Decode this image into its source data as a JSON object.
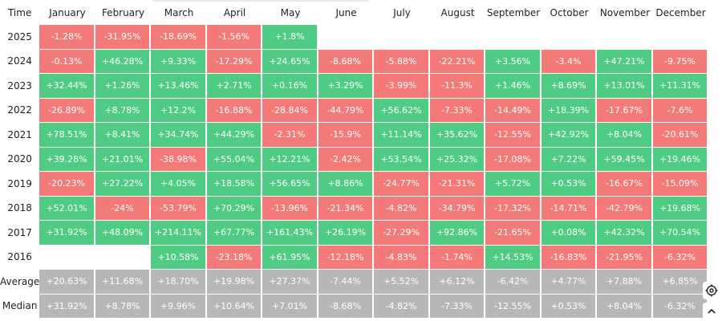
{
  "header": {
    "time_label": "Time",
    "months": [
      "January",
      "February",
      "March",
      "April",
      "May",
      "June",
      "July",
      "August",
      "September",
      "October",
      "November",
      "December"
    ]
  },
  "rows": [
    {
      "label": "2025",
      "values": [
        "-1.28%",
        "-31.95%",
        "-18.69%",
        "-1.56%",
        "+1.8%",
        "",
        "",
        "",
        "",
        "",
        "",
        ""
      ]
    },
    {
      "label": "2024",
      "values": [
        "-0.13%",
        "+46.28%",
        "+9.33%",
        "-17.29%",
        "+24.65%",
        "-8.68%",
        "-5.88%",
        "-22.21%",
        "+3.56%",
        "-3.4%",
        "+47.21%",
        "-9.75%"
      ]
    },
    {
      "label": "2023",
      "values": [
        "+32.44%",
        "+1.26%",
        "+13.46%",
        "+2.71%",
        "+0.16%",
        "+3.29%",
        "-3.99%",
        "-11.3%",
        "+1.46%",
        "+8.69%",
        "+13.01%",
        "+11.31%"
      ]
    },
    {
      "label": "2022",
      "values": [
        "-26.89%",
        "+8.78%",
        "+12.2%",
        "-16.88%",
        "-28.84%",
        "-44.79%",
        "+56.62%",
        "-7.33%",
        "-14.49%",
        "+18.39%",
        "-17.67%",
        "-7.6%"
      ]
    },
    {
      "label": "2021",
      "values": [
        "+78.51%",
        "+8.41%",
        "+34.74%",
        "+44.29%",
        "-2.31%",
        "-15.9%",
        "+11.14%",
        "+35.62%",
        "-12.55%",
        "+42.92%",
        "+8.04%",
        "-20.61%"
      ]
    },
    {
      "label": "2020",
      "values": [
        "+39.28%",
        "+21.01%",
        "-38.98%",
        "+55.04%",
        "+12.21%",
        "-2.42%",
        "+53.54%",
        "+25.32%",
        "-17.08%",
        "+7.22%",
        "+59.45%",
        "+19.46%"
      ]
    },
    {
      "label": "2019",
      "values": [
        "-20.23%",
        "+27.22%",
        "+4.05%",
        "+18.58%",
        "+56.65%",
        "+8.86%",
        "-24.77%",
        "-21.31%",
        "+5.72%",
        "+0.53%",
        "-16.67%",
        "-15.09%"
      ]
    },
    {
      "label": "2018",
      "values": [
        "+52.01%",
        "-24%",
        "-53.79%",
        "+70.29%",
        "-13.96%",
        "-21.34%",
        "-4.82%",
        "-34.79%",
        "-17.32%",
        "-14.71%",
        "-42.79%",
        "+19.68%"
      ]
    },
    {
      "label": "2017",
      "values": [
        "+31.92%",
        "+48.09%",
        "+214.11%",
        "+67.77%",
        "+161.43%",
        "+26.19%",
        "-27.29%",
        "+92.86%",
        "-21.65%",
        "+0.08%",
        "+42.32%",
        "+70.54%"
      ]
    },
    {
      "label": "2016",
      "values": [
        "",
        "",
        "+10.58%",
        "-23.18%",
        "+61.95%",
        "-12.18%",
        "-4.83%",
        "-1.74%",
        "+14.53%",
        "-16.83%",
        "-21.95%",
        "-6.32%"
      ]
    }
  ],
  "summary": [
    {
      "label": "Average",
      "values": [
        "+20.63%",
        "+11.68%",
        "+18.70%",
        "+19.98%",
        "+27.37%",
        "-7.44%",
        "+5.52%",
        "+6.12%",
        "-6.42%",
        "+4.77%",
        "+7.88%",
        "+6.85%"
      ]
    },
    {
      "label": "Median",
      "values": [
        "+31.92%",
        "+8.78%",
        "+9.96%",
        "+10.64%",
        "+7.01%",
        "-8.68%",
        "-4.82%",
        "-7.33%",
        "-12.55%",
        "+0.53%",
        "+8.04%",
        "-6.32%"
      ]
    }
  ],
  "colors": {
    "positive": "#4fcb84",
    "negative": "#f47a7a",
    "summary": "#b7b7b7"
  },
  "icons": {
    "settings": "gear-icon",
    "scroll_top": "chevron-up-icon"
  }
}
